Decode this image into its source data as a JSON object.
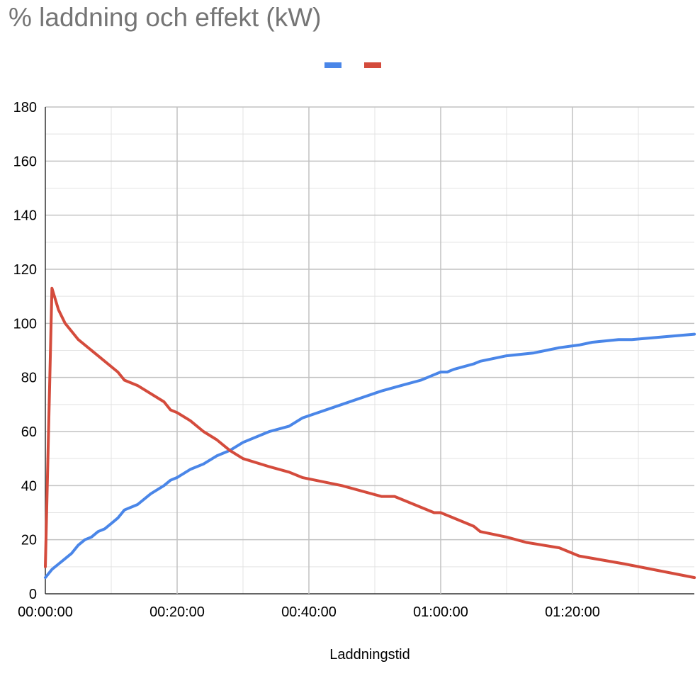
{
  "chart_data": {
    "type": "line",
    "title": "% laddning och effekt (kW)",
    "xlabel": "Laddningstid",
    "ylabel": "",
    "x_ticks": [
      "00:00:00",
      "00:20:00",
      "00:40:00",
      "01:00:00",
      "01:20:00"
    ],
    "y_ticks": [
      "0",
      "20",
      "40",
      "60",
      "80",
      "100",
      "120",
      "140",
      "160",
      "180"
    ],
    "xlim": [
      "00:00:00",
      "01:38:30"
    ],
    "ylim": [
      0,
      180
    ],
    "grid": true,
    "legend_position": "top-center",
    "series": [
      {
        "color": "#4a86e8",
        "points": [
          [
            "00:00:00",
            6
          ],
          [
            "00:01:00",
            9
          ],
          [
            "00:02:00",
            11
          ],
          [
            "00:03:00",
            13
          ],
          [
            "00:04:00",
            15
          ],
          [
            "00:05:00",
            18
          ],
          [
            "00:06:00",
            20
          ],
          [
            "00:07:00",
            21
          ],
          [
            "00:08:00",
            23
          ],
          [
            "00:09:00",
            24
          ],
          [
            "00:10:00",
            26
          ],
          [
            "00:11:00",
            28
          ],
          [
            "00:12:00",
            31
          ],
          [
            "00:14:00",
            33
          ],
          [
            "00:16:00",
            37
          ],
          [
            "00:18:00",
            40
          ],
          [
            "00:19:00",
            42
          ],
          [
            "00:20:00",
            43
          ],
          [
            "00:22:00",
            46
          ],
          [
            "00:24:00",
            48
          ],
          [
            "00:26:00",
            51
          ],
          [
            "00:28:00",
            53
          ],
          [
            "00:30:00",
            56
          ],
          [
            "00:34:00",
            60
          ],
          [
            "00:37:00",
            62
          ],
          [
            "00:39:00",
            65
          ],
          [
            "00:45:00",
            70
          ],
          [
            "00:51:00",
            75
          ],
          [
            "00:54:00",
            77
          ],
          [
            "00:57:00",
            79
          ],
          [
            "00:58:00",
            80
          ],
          [
            "00:59:00",
            81
          ],
          [
            "01:00:00",
            82
          ],
          [
            "01:01:00",
            82
          ],
          [
            "01:02:00",
            83
          ],
          [
            "01:05:00",
            85
          ],
          [
            "01:06:00",
            86
          ],
          [
            "01:10:00",
            88
          ],
          [
            "01:14:00",
            89
          ],
          [
            "01:18:00",
            91
          ],
          [
            "01:21:00",
            92
          ],
          [
            "01:23:00",
            93
          ],
          [
            "01:27:00",
            94
          ],
          [
            "01:29:00",
            94
          ],
          [
            "01:38:30",
            96
          ]
        ]
      },
      {
        "color": "#d44b3c",
        "points": [
          [
            "00:00:00",
            10
          ],
          [
            "00:01:00",
            113
          ],
          [
            "00:02:00",
            105
          ],
          [
            "00:03:00",
            100
          ],
          [
            "00:05:00",
            94
          ],
          [
            "00:08:00",
            88
          ],
          [
            "00:11:00",
            82
          ],
          [
            "00:12:00",
            79
          ],
          [
            "00:14:00",
            77
          ],
          [
            "00:18:00",
            71
          ],
          [
            "00:19:00",
            68
          ],
          [
            "00:20:00",
            67
          ],
          [
            "00:22:00",
            64
          ],
          [
            "00:24:00",
            60
          ],
          [
            "00:26:00",
            57
          ],
          [
            "00:28:00",
            53
          ],
          [
            "00:30:00",
            50
          ],
          [
            "00:34:00",
            47
          ],
          [
            "00:37:00",
            45
          ],
          [
            "00:39:00",
            43
          ],
          [
            "00:45:00",
            40
          ],
          [
            "00:51:00",
            36
          ],
          [
            "00:53:00",
            36
          ],
          [
            "00:59:00",
            30
          ],
          [
            "01:00:00",
            30
          ],
          [
            "01:05:00",
            25
          ],
          [
            "01:06:00",
            23
          ],
          [
            "01:10:00",
            21
          ],
          [
            "01:13:00",
            19
          ],
          [
            "01:18:00",
            17
          ],
          [
            "01:21:00",
            14
          ],
          [
            "01:28:00",
            11
          ],
          [
            "01:38:30",
            6
          ]
        ]
      }
    ]
  }
}
